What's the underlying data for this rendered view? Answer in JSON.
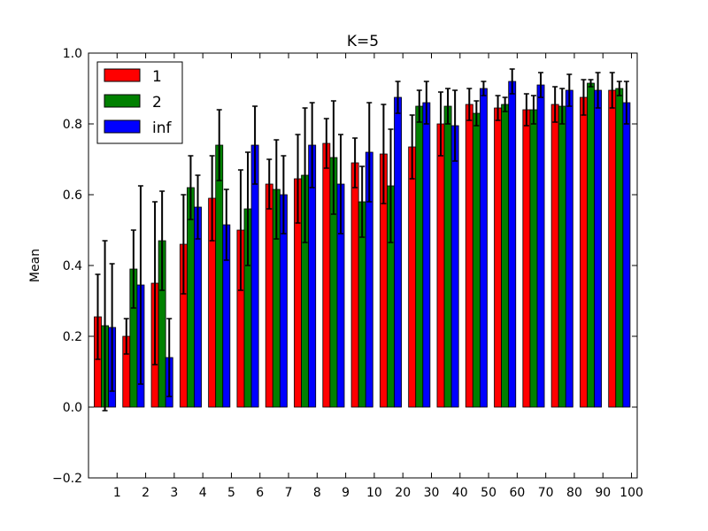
{
  "chart_data": {
    "type": "bar",
    "title": "K=5",
    "xlabel": "",
    "ylabel": "Mean",
    "ylim": [
      -0.2,
      1.0
    ],
    "yticks": [
      "−0.2",
      "0.0",
      "0.2",
      "0.4",
      "0.6",
      "0.8",
      "1.0"
    ],
    "categories": [
      "1",
      "2",
      "3",
      "4",
      "5",
      "6",
      "7",
      "8",
      "9",
      "10",
      "20",
      "30",
      "40",
      "50",
      "60",
      "70",
      "80",
      "90",
      "100"
    ],
    "legend_position": "top-left",
    "error_bars": true,
    "series": [
      {
        "name": "1",
        "color": "#ff0000",
        "values": [
          0.255,
          0.2,
          0.35,
          0.46,
          0.59,
          0.5,
          0.63,
          0.645,
          0.745,
          0.69,
          0.715,
          0.735,
          0.8,
          0.855,
          0.845,
          0.84,
          0.855,
          0.875,
          0.895
        ],
        "errors": [
          0.12,
          0.05,
          0.23,
          0.14,
          0.12,
          0.17,
          0.07,
          0.125,
          0.07,
          0.07,
          0.14,
          0.09,
          0.09,
          0.045,
          0.035,
          0.045,
          0.05,
          0.05,
          0.05
        ]
      },
      {
        "name": "2",
        "color": "#008000",
        "values": [
          0.23,
          0.39,
          0.47,
          0.62,
          0.74,
          0.56,
          0.615,
          0.655,
          0.705,
          0.58,
          0.625,
          0.85,
          0.85,
          0.83,
          0.855,
          0.84,
          0.85,
          0.915,
          0.9
        ]
      },
      {
        "name": "inf",
        "color": "#0000ff",
        "values": [
          0.225,
          0.345,
          0.14,
          0.565,
          0.515,
          0.74,
          0.6,
          0.74,
          0.63,
          0.72,
          0.875,
          0.86,
          0.795,
          0.9,
          0.92,
          0.91,
          0.895,
          0.895,
          0.86
        ]
      }
    ],
    "series_errors": [
      [
        0.12,
        0.05,
        0.23,
        0.14,
        0.12,
        0.17,
        0.07,
        0.125,
        0.07,
        0.07,
        0.14,
        0.09,
        0.09,
        0.045,
        0.035,
        0.045,
        0.05,
        0.05,
        0.05
      ],
      [
        0.24,
        0.11,
        0.14,
        0.09,
        0.1,
        0.16,
        0.14,
        0.19,
        0.16,
        0.1,
        0.16,
        0.045,
        0.05,
        0.035,
        0.02,
        0.04,
        0.05,
        0.01,
        0.02
      ],
      [
        0.18,
        0.28,
        0.11,
        0.09,
        0.1,
        0.11,
        0.11,
        0.12,
        0.14,
        0.14,
        0.045,
        0.06,
        0.1,
        0.02,
        0.035,
        0.035,
        0.045,
        0.05,
        0.06
      ]
    ]
  }
}
